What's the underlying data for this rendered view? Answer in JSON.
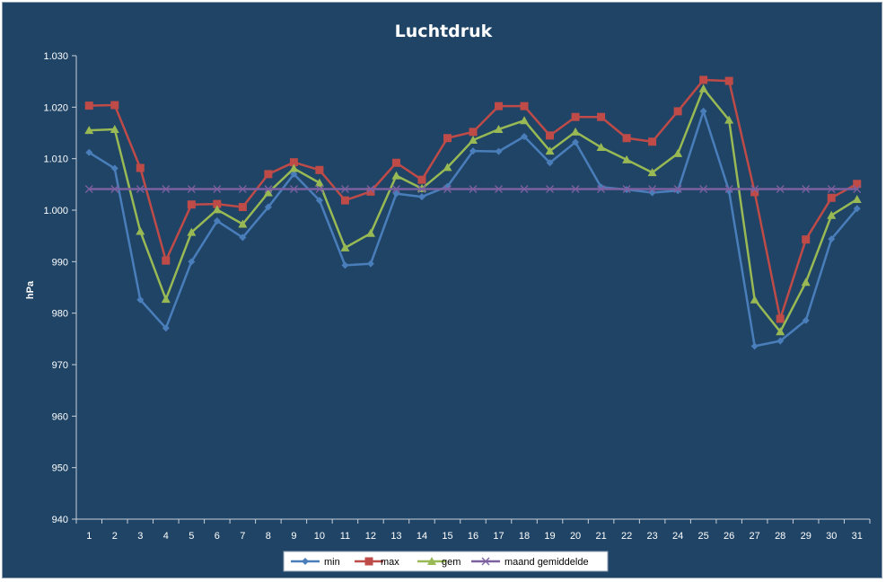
{
  "chart_data": {
    "type": "line",
    "title": "Luchtdruk",
    "xlabel": "",
    "ylabel": "hPa",
    "ylim": [
      940,
      1030
    ],
    "yticks": [
      "940",
      "950",
      "960",
      "970",
      "980",
      "990",
      "1.000",
      "1.010",
      "1.020",
      "1.030"
    ],
    "categories": [
      "1",
      "2",
      "3",
      "4",
      "5",
      "6",
      "7",
      "8",
      "9",
      "10",
      "11",
      "12",
      "13",
      "14",
      "15",
      "16",
      "17",
      "18",
      "19",
      "20",
      "21",
      "22",
      "23",
      "24",
      "25",
      "26",
      "27",
      "28",
      "29",
      "30",
      "31"
    ],
    "grid": false,
    "legend_position": "bottom",
    "series": [
      {
        "name": "min",
        "color": "#4a7ebb",
        "marker": "diamond",
        "values": [
          1011.2,
          1008.1,
          982.6,
          977.1,
          990.0,
          997.9,
          994.7,
          1000.6,
          1007.0,
          1001.9,
          989.3,
          989.6,
          1003.2,
          1002.6,
          1004.6,
          1011.5,
          1011.4,
          1014.3,
          1009.2,
          1013.2,
          1004.5,
          1004.0,
          1003.4,
          1003.8,
          1019.2,
          1003.7,
          973.6,
          974.6,
          978.6,
          994.4,
          1000.3
        ]
      },
      {
        "name": "max",
        "color": "#be4b48",
        "marker": "square",
        "values": [
          1020.3,
          1020.4,
          1008.2,
          990.2,
          1001.1,
          1001.2,
          1000.6,
          1007.0,
          1009.3,
          1007.8,
          1001.9,
          1003.6,
          1009.2,
          1005.9,
          1014.0,
          1015.2,
          1020.2,
          1020.2,
          1014.5,
          1018.1,
          1018.1,
          1014.0,
          1013.3,
          1019.2,
          1025.3,
          1025.1,
          1003.5,
          978.9,
          994.3,
          1002.4,
          1005.1
        ]
      },
      {
        "name": "gem",
        "color": "#98b954",
        "marker": "triangle",
        "values": [
          1015.5,
          1015.7,
          995.9,
          982.7,
          995.7,
          1000.1,
          997.3,
          1003.4,
          1008.1,
          1005.3,
          992.7,
          995.5,
          1006.7,
          1004.2,
          1008.3,
          1013.6,
          1015.7,
          1017.4,
          1011.5,
          1015.2,
          1012.2,
          1009.8,
          1007.3,
          1011.0,
          1023.6,
          1017.5,
          982.6,
          976.4,
          986.0,
          999.0,
          1002.1
        ]
      },
      {
        "name": "maand gemiddelde",
        "color": "#7d60a0",
        "marker": "x",
        "values": [
          1004.1,
          1004.1,
          1004.1,
          1004.1,
          1004.1,
          1004.1,
          1004.1,
          1004.1,
          1004.1,
          1004.1,
          1004.1,
          1004.1,
          1004.1,
          1004.1,
          1004.1,
          1004.1,
          1004.1,
          1004.1,
          1004.1,
          1004.1,
          1004.1,
          1004.1,
          1004.1,
          1004.1,
          1004.1,
          1004.1,
          1004.1,
          1004.1,
          1004.1,
          1004.1,
          1004.1
        ]
      }
    ]
  }
}
